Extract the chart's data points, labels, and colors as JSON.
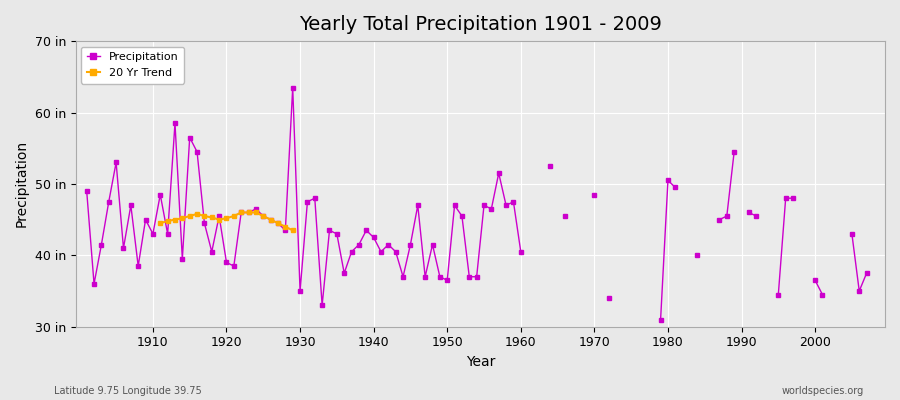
{
  "title": "Yearly Total Precipitation 1901 - 2009",
  "xlabel": "Year",
  "ylabel": "Precipitation",
  "subtitle": "Latitude 9.75 Longitude 39.75",
  "watermark": "worldspecies.org",
  "bg_color": "#e8e8e8",
  "plot_bg_color": "#ebebeb",
  "grid_color": "#ffffff",
  "line_color": "#cc00cc",
  "trend_color": "#ffaa00",
  "ylim": [
    30,
    70
  ],
  "yticks": [
    30,
    40,
    50,
    60,
    70
  ],
  "ytick_labels": [
    "30 in",
    "40 in",
    "50 in",
    "60 in",
    "70 in"
  ],
  "xlim": [
    1899.5,
    2009.5
  ],
  "xticks": [
    1910,
    1920,
    1930,
    1940,
    1950,
    1960,
    1970,
    1980,
    1990,
    2000
  ],
  "years": [
    1901,
    1902,
    1903,
    1904,
    1905,
    1906,
    1907,
    1908,
    1909,
    1910,
    1911,
    1912,
    1913,
    1914,
    1915,
    1916,
    1917,
    1918,
    1919,
    1920,
    1921,
    1922,
    1923,
    1924,
    1925,
    1926,
    1927,
    1928,
    1929,
    1930,
    1931,
    1932,
    1933,
    1934,
    1935,
    1936,
    1937,
    1938,
    1939,
    1940,
    1941,
    1942,
    1943,
    1944,
    1945,
    1946,
    1947,
    1948,
    1949,
    1950,
    1951,
    1952,
    1953,
    1954,
    1955,
    1956,
    1957,
    1958,
    1959,
    1960,
    1961,
    1962,
    1963,
    1964,
    1965,
    1966,
    1967,
    1968,
    1969,
    1970,
    1971,
    1972,
    1973,
    1974,
    1975,
    1976,
    1977,
    1978,
    1979,
    1980,
    1981,
    1982,
    1983,
    1984,
    1985,
    1986,
    1987,
    1988,
    1989,
    1990,
    1991,
    1992,
    1993,
    1994,
    1995,
    1996,
    1997,
    1998,
    1999,
    2000,
    2001,
    2002,
    2003,
    2004,
    2005,
    2006,
    2007,
    2008,
    2009
  ],
  "precip": [
    49.0,
    36.0,
    41.5,
    47.5,
    53.0,
    41.0,
    47.0,
    38.5,
    45.0,
    43.0,
    48.5,
    43.0,
    58.5,
    39.5,
    56.5,
    54.5,
    44.5,
    40.5,
    45.5,
    39.0,
    38.5,
    46.0,
    46.0,
    46.5,
    45.5,
    45.0,
    44.5,
    43.5,
    63.5,
    35.0,
    47.5,
    48.0,
    33.0,
    43.5,
    43.0,
    37.5,
    40.5,
    41.5,
    43.5,
    42.5,
    40.5,
    41.5,
    40.5,
    37.0,
    41.5,
    47.0,
    37.0,
    41.5,
    37.0,
    36.5,
    47.0,
    45.5,
    37.0,
    37.0,
    47.0,
    46.5,
    51.5,
    47.0,
    47.5,
    40.5,
    null,
    null,
    null,
    52.5,
    null,
    45.5,
    null,
    null,
    null,
    48.5,
    null,
    34.0,
    null,
    null,
    null,
    null,
    null,
    null,
    31.0,
    50.5,
    49.5,
    null,
    null,
    40.0,
    null,
    null,
    45.0,
    45.5,
    54.5,
    null,
    46.0,
    45.5,
    null,
    null,
    34.5,
    48.0,
    48.0,
    null,
    null,
    36.5,
    34.5,
    null,
    null,
    null,
    43.0,
    35.0,
    37.5,
    null,
    null
  ],
  "trend_years": [
    1911,
    1912,
    1913,
    1914,
    1915,
    1916,
    1917,
    1918,
    1919,
    1920,
    1921,
    1922,
    1923,
    1924,
    1925,
    1926,
    1927,
    1928,
    1929
  ],
  "trend_values": [
    44.5,
    44.8,
    45.0,
    45.2,
    45.5,
    45.8,
    45.5,
    45.3,
    45.0,
    45.2,
    45.5,
    46.0,
    46.0,
    46.0,
    45.5,
    45.0,
    44.5,
    44.0,
    43.5
  ]
}
